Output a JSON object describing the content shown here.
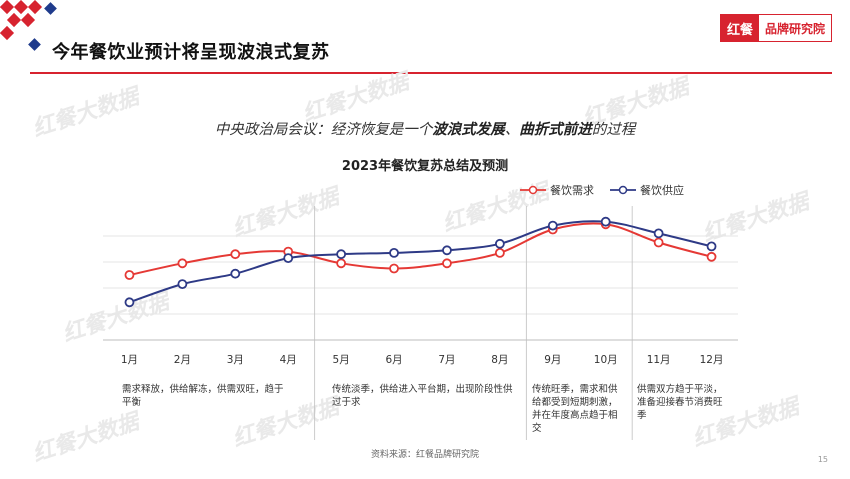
{
  "header": {
    "title": "今年餐饮业预计将呈现波浪式复苏",
    "brand_logo": "红餐",
    "brand_name": "品牌研究院"
  },
  "subtitle": {
    "prefix": "中央政治局会议：经济恢复是一个",
    "em1": "波浪式发展",
    "sep": "、",
    "em2": "曲折式前进",
    "suffix": "的过程"
  },
  "watermark_text": "红餐大数据",
  "chart_data": {
    "type": "line",
    "title": "2023年餐饮复苏总结及预测",
    "categories": [
      "1月",
      "2月",
      "3月",
      "4月",
      "5月",
      "6月",
      "7月",
      "8月",
      "9月",
      "10月",
      "11月",
      "12月"
    ],
    "series": [
      {
        "name": "餐饮需求",
        "color": "#e53935",
        "values": [
          5.0,
          5.9,
          6.6,
          6.8,
          5.9,
          5.5,
          5.9,
          6.7,
          8.5,
          8.9,
          7.5,
          6.4
        ]
      },
      {
        "name": "餐饮供应",
        "color": "#2e3a86",
        "values": [
          2.9,
          4.3,
          5.1,
          6.3,
          6.6,
          6.7,
          6.9,
          7.4,
          8.8,
          9.1,
          8.2,
          7.2
        ]
      }
    ],
    "ylim": [
      0,
      10
    ],
    "grid": true,
    "legend_position": "top-right",
    "annotations": [
      "需求释放，供给解冻，供需双旺，趋于平衡",
      "传统淡季，供给进入平台期，出现阶段性供过于求",
      "传统旺季，需求和供给都受到短期刺激，并在年度高点趋于相交",
      "供需双方趋于平淡，准备迎接春节消费旺季"
    ]
  },
  "footer": {
    "source": "资料来源：红餐品牌研究院",
    "page": "15"
  },
  "colors": {
    "accent": "#d7232f",
    "navy": "#1f3b8c",
    "demand": "#e53935",
    "supply": "#2e3a86"
  }
}
